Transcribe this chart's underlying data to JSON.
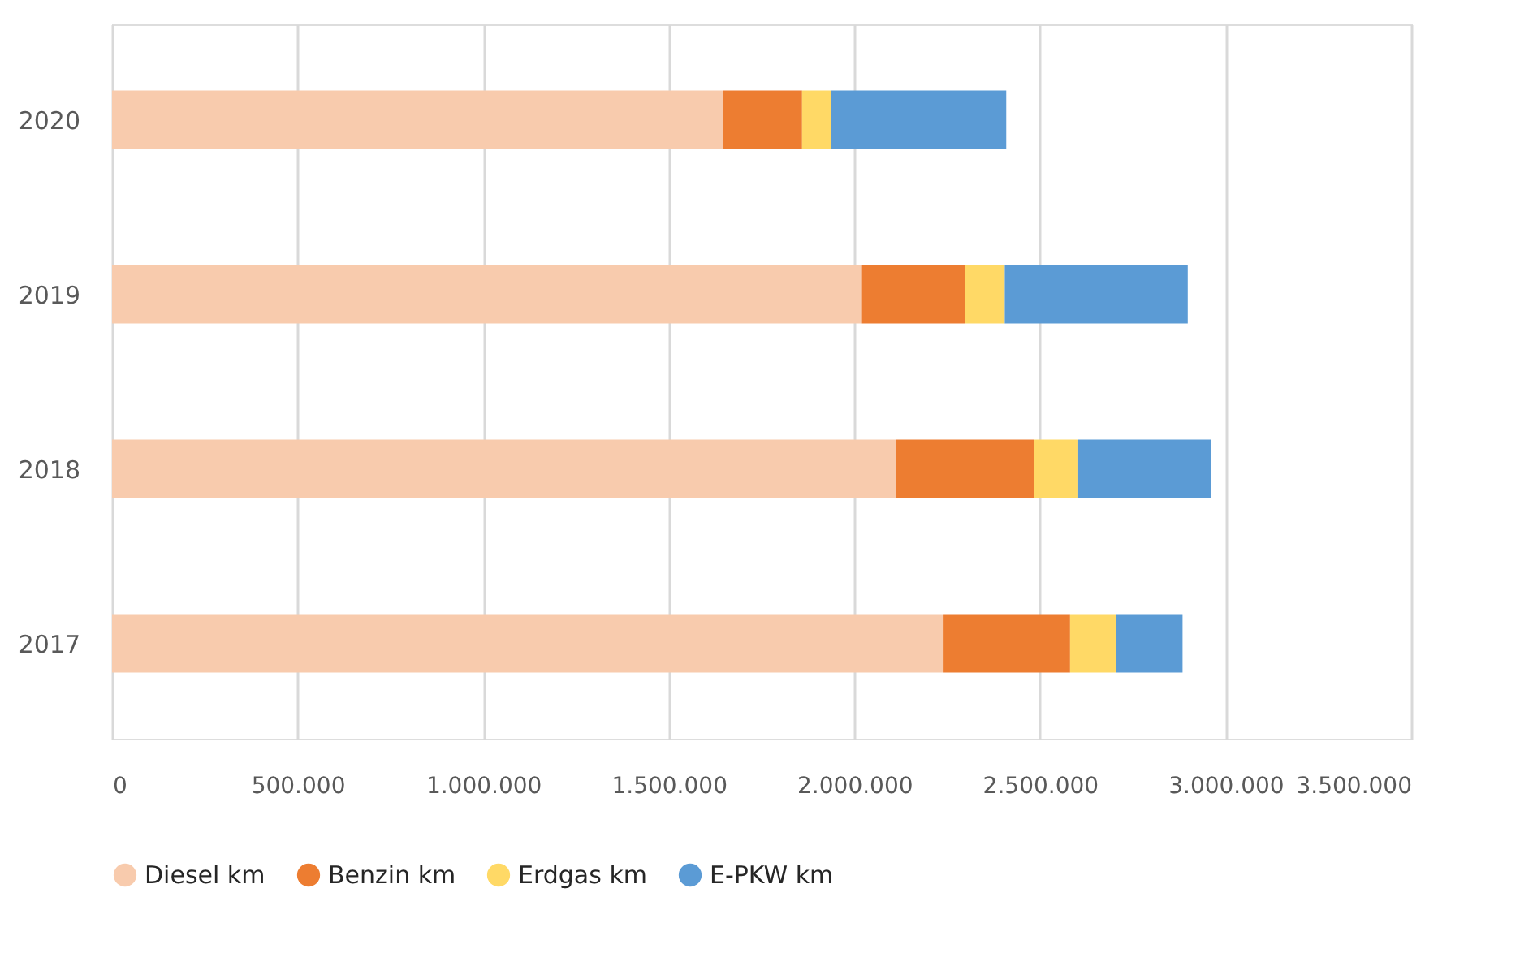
{
  "chart_data": {
    "type": "bar",
    "orientation": "horizontal",
    "stacked": true,
    "categories": [
      "2020",
      "2019",
      "2018",
      "2017"
    ],
    "series": [
      {
        "name": "Diesel km",
        "color": "#f8cbad",
        "values": [
          1645000,
          2018000,
          2111000,
          2238000
        ]
      },
      {
        "name": "Benzin km",
        "color": "#ed7d31",
        "values": [
          214000,
          280000,
          374000,
          343000
        ]
      },
      {
        "name": "Erdgas km",
        "color": "#ffd966",
        "values": [
          79000,
          107000,
          118000,
          123000
        ]
      },
      {
        "name": "E-PKW km",
        "color": "#5b9bd5",
        "values": [
          471000,
          493000,
          357000,
          180000
        ]
      }
    ],
    "xlim": [
      0,
      3500000
    ],
    "xticks": [
      0,
      {
        "value": 500000,
        "label": "500.000"
      },
      {
        "value": 1000000,
        "label": "1.000.000"
      },
      {
        "value": 1500000,
        "label": "1.500.000"
      },
      {
        "value": 2000000,
        "label": "2.000.000"
      },
      {
        "value": 2500000,
        "label": "2.500.000"
      },
      {
        "value": 3000000,
        "label": "3.000.000"
      },
      {
        "value": 3500000,
        "label": "3.500.000"
      }
    ],
    "grid": "x",
    "legend": "bottom left"
  }
}
